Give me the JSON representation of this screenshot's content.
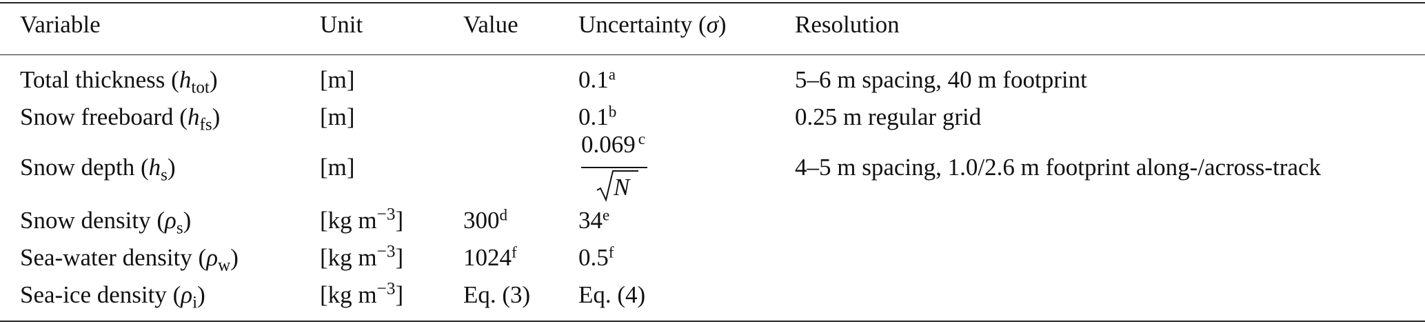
{
  "table": {
    "headers": [
      "Variable",
      "Unit",
      "Value",
      "Uncertainty (",
      "σ",
      ")",
      "Resolution"
    ],
    "rows": [
      {
        "name": "Total thickness (",
        "sym": "h",
        "sub": "tot",
        "unit": "[m]",
        "value": "",
        "value_sup": "",
        "unc": "0.1",
        "unc_sup": "a",
        "res": "5–6 m spacing, 40 m footprint"
      },
      {
        "name": "Snow freeboard (",
        "sym": "h",
        "sub": "fs",
        "unit": "[m]",
        "value": "",
        "value_sup": "",
        "unc": "0.1",
        "unc_sup": "b",
        "res": "0.25 m regular grid"
      },
      {
        "name": "Snow depth (",
        "sym": "h",
        "sub": "s",
        "unit": "[m]",
        "value": "",
        "value_sup": "",
        "unc_num": "0.069",
        "unc_sup": "c",
        "unc_den": "N",
        "res": "4–5 m spacing, 1.0/2.6 m footprint along-/across-track"
      },
      {
        "name": "Snow density (",
        "sym": "ρ",
        "sub": "s",
        "unit_base": "[kg m",
        "unit_exp": "−3",
        "unit_close": "]",
        "value": "300",
        "value_sup": "d",
        "unc": "34",
        "unc_sup": "e",
        "res": ""
      },
      {
        "name": "Sea-water density (",
        "sym": "ρ",
        "sub": "w",
        "unit_base": "[kg m",
        "unit_exp": "−3",
        "unit_close": "]",
        "value": "1024",
        "value_sup": "f",
        "unc": "0.5",
        "unc_sup": "f",
        "res": ""
      },
      {
        "name": "Sea-ice density (",
        "sym": "ρ",
        "sub": "i",
        "unit_base": "[kg m",
        "unit_exp": "−3",
        "unit_close": "]",
        "value": "Eq. (3)",
        "value_sup": "",
        "unc": "Eq. (4)",
        "unc_sup": "",
        "res": ""
      }
    ]
  }
}
